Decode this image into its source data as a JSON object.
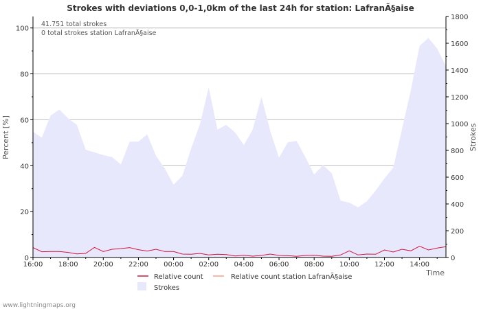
{
  "chart_data": {
    "type": "area",
    "title": "Strokes with deviations 0,0-1,0km of the last 24h for station: LafranÃ§aise",
    "annotations": [
      "41.751 total strokes",
      "0 total strokes station LafranÃ§aise"
    ],
    "y_left": {
      "label": "Percent   [%]",
      "range": [
        0,
        105
      ],
      "ticks": [
        0,
        20,
        40,
        60,
        80,
        100
      ]
    },
    "y_right": {
      "label": "Strokes",
      "range": [
        0,
        1800
      ],
      "ticks": [
        0,
        200,
        400,
        600,
        800,
        1000,
        1200,
        1400,
        1600,
        1800
      ]
    },
    "x_axis": {
      "label": "Time",
      "range": [
        0,
        23.5
      ],
      "ticks": [
        {
          "t": 0,
          "label": "16:00"
        },
        {
          "t": 2,
          "label": "18:00"
        },
        {
          "t": 4,
          "label": "20:00"
        },
        {
          "t": 6,
          "label": "22:00"
        },
        {
          "t": 8,
          "label": "00:00"
        },
        {
          "t": 10,
          "label": "02:00"
        },
        {
          "t": 12,
          "label": "04:00"
        },
        {
          "t": 14,
          "label": "06:00"
        },
        {
          "t": 16,
          "label": "08:00"
        },
        {
          "t": 18,
          "label": "10:00"
        },
        {
          "t": 20,
          "label": "12:00"
        },
        {
          "t": 22,
          "label": "14:00"
        }
      ]
    },
    "grid": true,
    "legend": {
      "placement": "bottom",
      "entries": [
        "Relative count",
        "Relative count station LafranÃ§aise",
        "Strokes"
      ]
    },
    "colors": {
      "strokes_fill": "#e8e8fc",
      "relative": "#d2143c",
      "relative_station": "#f5a08c",
      "grid": "#bbbbbb",
      "axis": "#000000",
      "text": "#333333"
    },
    "series": [
      {
        "name": "Strokes",
        "axis": "right",
        "x": [
          0,
          0.5,
          1,
          1.5,
          2,
          2.5,
          3,
          3.5,
          4,
          4.5,
          5,
          5.5,
          6,
          6.5,
          7,
          7.5,
          8,
          8.5,
          9,
          9.5,
          10,
          10.5,
          11,
          11.5,
          12,
          12.5,
          13,
          13.5,
          14,
          14.5,
          15,
          15.5,
          16,
          16.5,
          17,
          17.5,
          18,
          18.5,
          19,
          19.5,
          20,
          20.5,
          21,
          21.5,
          22,
          22.5,
          23,
          23.5
        ],
        "values": [
          940,
          895,
          1060,
          1105,
          1040,
          990,
          805,
          785,
          765,
          750,
          695,
          865,
          865,
          920,
          760,
          665,
          545,
          610,
          815,
          995,
          1270,
          955,
          990,
          935,
          840,
          955,
          1200,
          945,
          745,
          860,
          870,
          750,
          620,
          690,
          630,
          425,
          410,
          375,
          420,
          500,
          590,
          670,
          960,
          1250,
          1580,
          1640,
          1560,
          1430
        ]
      },
      {
        "name": "Relative count",
        "axis": "left",
        "x": [
          0,
          0.5,
          1,
          1.5,
          2,
          2.5,
          3,
          3.5,
          4,
          4.5,
          5,
          5.5,
          6,
          6.5,
          7,
          7.5,
          8,
          8.5,
          9,
          9.5,
          10,
          10.5,
          11,
          11.5,
          12,
          12.5,
          13,
          13.5,
          14,
          14.5,
          15,
          15.5,
          16,
          16.5,
          17,
          17.5,
          18,
          18.5,
          19,
          19.5,
          20,
          20.5,
          21,
          21.5,
          22,
          22.5,
          23,
          23.5
        ],
        "values": [
          4.3,
          2.5,
          2.6,
          2.6,
          2.2,
          1.6,
          1.8,
          4.4,
          2.6,
          3.6,
          3.9,
          4.3,
          3.4,
          2.8,
          3.6,
          2.6,
          2.6,
          1.5,
          1.4,
          1.8,
          1.1,
          1.4,
          1.3,
          0.7,
          1.0,
          0.6,
          0.9,
          1.5,
          0.9,
          0.8,
          0.5,
          0.9,
          1.0,
          0.6,
          0.5,
          1.1,
          2.9,
          1.1,
          1.5,
          1.4,
          3.3,
          2.4,
          3.6,
          2.9,
          4.9,
          3.3,
          4.1,
          4.7
        ]
      },
      {
        "name": "Relative count station LafranÃ§aise",
        "axis": "left",
        "x": [
          0,
          23.5
        ],
        "values": [
          0,
          0
        ]
      }
    ]
  },
  "footer": {
    "source": "www.lightningmaps.org"
  }
}
